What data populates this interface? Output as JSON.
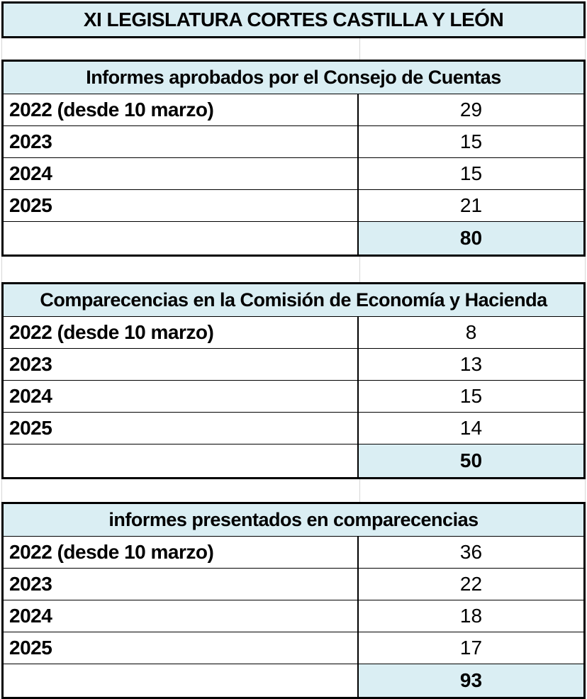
{
  "title": "XI LEGISLATURA CORTES CASTILLA Y LEÓN",
  "colors": {
    "header_bg": "#daeef3",
    "total_bg": "#daeef3",
    "border": "#000000",
    "gridline": "#d6d6d6",
    "text": "#000000"
  },
  "tables": [
    {
      "title": "Informes aprobados por el Consejo de Cuentas",
      "rows": [
        {
          "label": "2022 (desde 10 marzo)",
          "value": "29"
        },
        {
          "label": "2023",
          "value": "15"
        },
        {
          "label": "2024",
          "value": "15"
        },
        {
          "label": "2025",
          "value": "21"
        }
      ],
      "total": "80"
    },
    {
      "title": "Comparecencias en la Comisión de Economía y Hacienda",
      "rows": [
        {
          "label": "2022 (desde 10 marzo)",
          "value": "8"
        },
        {
          "label": "2023",
          "value": "13"
        },
        {
          "label": "2024",
          "value": "15"
        },
        {
          "label": "2025",
          "value": "14"
        }
      ],
      "total": "50"
    },
    {
      "title": "informes presentados en comparecencias",
      "rows": [
        {
          "label": "2022 (desde 10 marzo)",
          "value": "36"
        },
        {
          "label": "2023",
          "value": "22"
        },
        {
          "label": "2024",
          "value": "18"
        },
        {
          "label": "2025",
          "value": "17"
        }
      ],
      "total": "93"
    }
  ]
}
